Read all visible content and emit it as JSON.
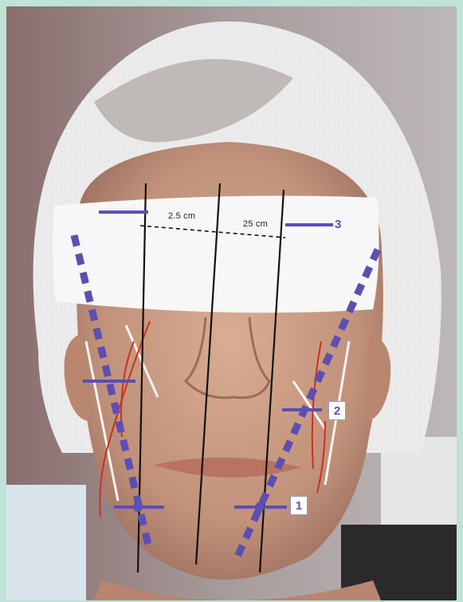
{
  "annotations": {
    "measure_left": "2.5 cm",
    "measure_right": "25 cm",
    "point_1": "1",
    "point_2": "2",
    "point_3": "3"
  },
  "colors": {
    "frame": "#bfe3d6",
    "marking_purple": "#5b4fb3",
    "guide_black": "#111111",
    "vessel_red": "#c8321e",
    "cap_white": "#f2f2f2"
  }
}
